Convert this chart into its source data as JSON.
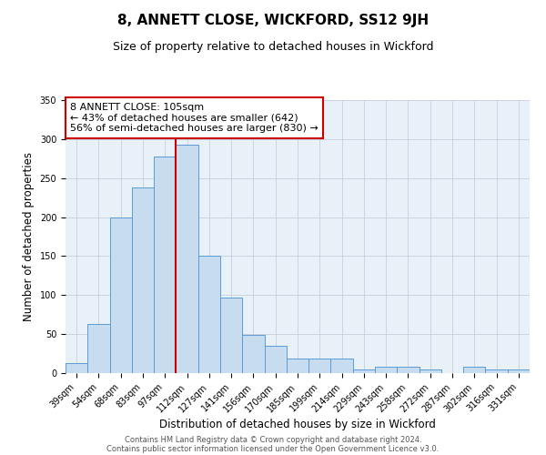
{
  "title": "8, ANNETT CLOSE, WICKFORD, SS12 9JH",
  "subtitle": "Size of property relative to detached houses in Wickford",
  "xlabel": "Distribution of detached houses by size in Wickford",
  "ylabel": "Number of detached properties",
  "bar_labels": [
    "39sqm",
    "54sqm",
    "68sqm",
    "83sqm",
    "97sqm",
    "112sqm",
    "127sqm",
    "141sqm",
    "156sqm",
    "170sqm",
    "185sqm",
    "199sqm",
    "214sqm",
    "229sqm",
    "243sqm",
    "258sqm",
    "272sqm",
    "287sqm",
    "302sqm",
    "316sqm",
    "331sqm"
  ],
  "bar_values": [
    13,
    63,
    200,
    238,
    278,
    293,
    150,
    97,
    49,
    35,
    19,
    19,
    19,
    5,
    8,
    8,
    5,
    0,
    8,
    5,
    5
  ],
  "bar_color": "#c8dcf0",
  "bar_edge_color": "#5b9bd5",
  "vline_x_index": 4.5,
  "vline_color": "#cc0000",
  "ylim": [
    0,
    350
  ],
  "yticks": [
    0,
    50,
    100,
    150,
    200,
    250,
    300,
    350
  ],
  "annotation_text": "8 ANNETT CLOSE: 105sqm\n← 43% of detached houses are smaller (642)\n56% of semi-detached houses are larger (830) →",
  "annotation_box_color": "#ffffff",
  "annotation_box_edge": "#cc0000",
  "footer1": "Contains HM Land Registry data © Crown copyright and database right 2024.",
  "footer2": "Contains public sector information licensed under the Open Government Licence v3.0.",
  "title_fontsize": 11,
  "subtitle_fontsize": 9,
  "axis_label_fontsize": 8.5,
  "tick_fontsize": 7,
  "annotation_fontsize": 8,
  "footer_fontsize": 6,
  "bg_color": "#e8f0f8"
}
